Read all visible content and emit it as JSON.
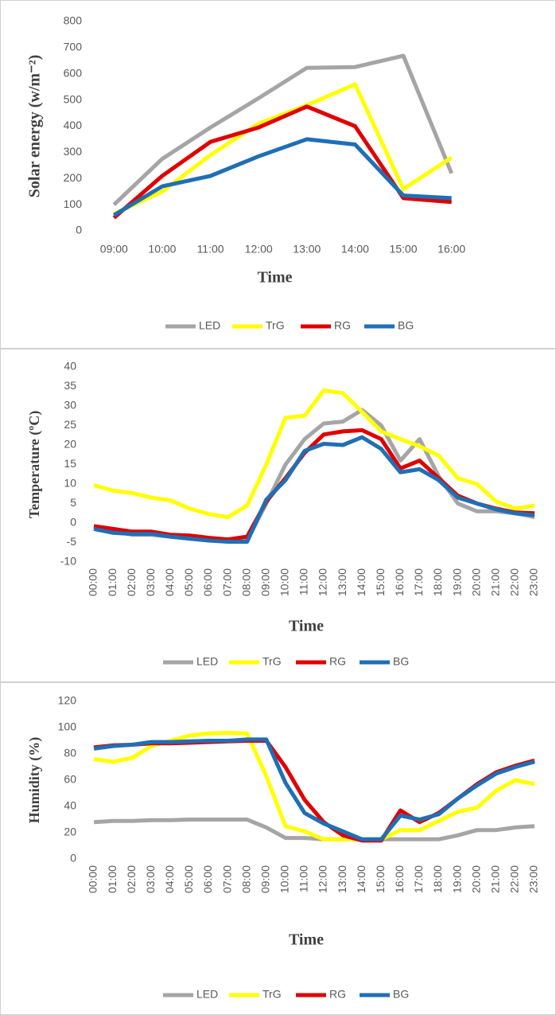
{
  "chart_data": [
    {
      "type": "line",
      "y_label": "Solar energy (w/m⁻²)",
      "x_label": "Time",
      "categories": [
        "09:00",
        "10:00",
        "11:00",
        "12:00",
        "13:00",
        "14:00",
        "15:00",
        "16:00"
      ],
      "ylim": [
        0,
        800
      ],
      "yticks": [
        0,
        100,
        200,
        300,
        400,
        500,
        600,
        700,
        800
      ],
      "series": [
        {
          "name": "LED",
          "color": "#a5a5a5",
          "values": [
            100,
            275,
            395,
            507,
            623,
            626,
            669,
            220
          ]
        },
        {
          "name": "TrG",
          "color": "#ffff00",
          "values": [
            65,
            150,
            290,
            410,
            480,
            560,
            160,
            280
          ]
        },
        {
          "name": "RG",
          "color": "#e00000",
          "values": [
            50,
            210,
            340,
            395,
            475,
            400,
            125,
            110
          ]
        },
        {
          "name": "BG",
          "color": "#1f6fb5",
          "values": [
            60,
            170,
            210,
            285,
            350,
            330,
            135,
            125
          ]
        }
      ]
    },
    {
      "type": "line",
      "y_label": "Temperature (ºC)",
      "x_label": "Time",
      "categories": [
        "00:00",
        "01:00",
        "02:00",
        "03:00",
        "04:00",
        "05:00",
        "06:00",
        "07:00",
        "08:00",
        "09:00",
        "10:00",
        "11:00",
        "12:00",
        "13:00",
        "14:00",
        "15:00",
        "16:00",
        "17:00",
        "18:00",
        "19:00",
        "20:00",
        "21:00",
        "22:00",
        "23:00"
      ],
      "ylim": [
        -10,
        40
      ],
      "yticks": [
        -10,
        -5,
        0,
        5,
        10,
        15,
        20,
        25,
        30,
        35,
        40
      ],
      "series": [
        {
          "name": "LED",
          "color": "#a5a5a5",
          "values": [
            -1,
            -2,
            -3,
            -3,
            -3.5,
            -4,
            -4.5,
            -4.5,
            -4.5,
            5,
            15,
            21.5,
            25.5,
            26,
            29,
            25,
            16,
            21.5,
            12,
            5,
            3,
            3,
            2.5,
            1.5
          ]
        },
        {
          "name": "TrG",
          "color": "#ffff00",
          "values": [
            9.7,
            8.3,
            7.7,
            6.5,
            5.8,
            3.7,
            2.3,
            1.5,
            4.5,
            15,
            27,
            27.5,
            34,
            33.3,
            28.5,
            23.5,
            21.5,
            19.7,
            17.3,
            11.5,
            10,
            5.5,
            3.7,
            4.5
          ]
        },
        {
          "name": "RG",
          "color": "#e00000",
          "values": [
            -0.8,
            -1.5,
            -2.2,
            -2.2,
            -3,
            -3.2,
            -3.8,
            -4.2,
            -3.5,
            5.5,
            11.5,
            18,
            22.7,
            23.5,
            23.8,
            21.5,
            14,
            16,
            11.5,
            7,
            5,
            3.7,
            2.7,
            2.5
          ]
        },
        {
          "name": "BG",
          "color": "#1f6fb5",
          "values": [
            -1.5,
            -2.5,
            -2.8,
            -2.8,
            -3.5,
            -4,
            -4.5,
            -4.8,
            -4.8,
            6,
            11,
            18.5,
            20.3,
            20,
            22,
            19,
            13,
            13.8,
            11,
            6.5,
            5,
            3.5,
            2.5,
            2
          ]
        }
      ]
    },
    {
      "type": "line",
      "y_label": "Humidity (%)",
      "x_label": "Time",
      "categories": [
        "00:00",
        "01:00",
        "02:00",
        "03:00",
        "04:00",
        "05:00",
        "06:00",
        "07:00",
        "08:00",
        "09:00",
        "10:00",
        "11:00",
        "12:00",
        "13:00",
        "14:00",
        "15:00",
        "16:00",
        "17:00",
        "18:00",
        "19:00",
        "20:00",
        "21:00",
        "22:00",
        "23:00"
      ],
      "ylim": [
        0,
        120
      ],
      "yticks": [
        0,
        20,
        40,
        60,
        80,
        100,
        120
      ],
      "series": [
        {
          "name": "LED",
          "color": "#a5a5a5",
          "values": [
            28,
            29,
            29,
            29.5,
            29.5,
            30,
            30,
            30,
            30,
            24,
            16,
            16,
            15,
            15,
            15,
            15,
            15,
            15,
            15,
            18,
            22,
            22,
            24,
            25
          ]
        },
        {
          "name": "TrG",
          "color": "#ffff00",
          "values": [
            76,
            74,
            77,
            86,
            90,
            94,
            95.5,
            96,
            95.5,
            63,
            25,
            21,
            15,
            15,
            15,
            15,
            22,
            22,
            29,
            36,
            39,
            52,
            60,
            57
          ]
        },
        {
          "name": "RG",
          "color": "#e00000",
          "values": [
            85,
            86.5,
            87,
            88,
            88,
            88.5,
            89,
            89.5,
            90,
            90,
            70,
            45,
            28,
            18,
            14,
            14,
            37,
            28,
            35,
            46,
            57,
            66,
            71,
            75
          ]
        },
        {
          "name": "BG",
          "color": "#1f6fb5",
          "values": [
            84,
            86,
            87,
            89,
            89,
            89.5,
            90,
            90,
            91,
            91,
            58,
            35,
            27,
            21,
            15,
            15,
            33,
            30,
            34,
            46,
            56,
            65,
            70,
            74
          ]
        }
      ]
    }
  ]
}
